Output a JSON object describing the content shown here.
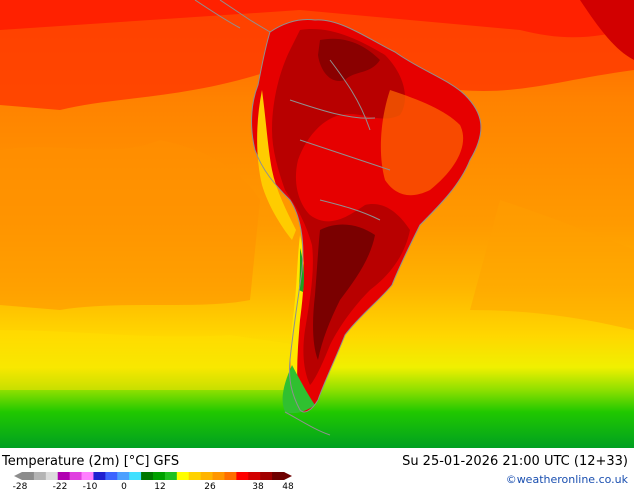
{
  "header": {
    "title": "Temperature (2m) [°C] GFS",
    "datetime": "Su 25-01-2026 21:00 UTC (12+33)",
    "credit": "©weatheronline.co.uk"
  },
  "legend": {
    "ticks": [
      "-28",
      "-22",
      "-10",
      "0",
      "12",
      "26",
      "38",
      "48"
    ],
    "colors": [
      "#8c8c8c",
      "#b4b4b4",
      "#dcdcdc",
      "#b000b0",
      "#e040e0",
      "#ff80ff",
      "#2020d0",
      "#3c64ff",
      "#4ca0ff",
      "#40e0ff",
      "#007800",
      "#00a000",
      "#20c020",
      "#ffff00",
      "#ffd200",
      "#ffb400",
      "#ff9600",
      "#ff6e00",
      "#ff0000",
      "#d20000",
      "#a00000",
      "#6e0000"
    ]
  },
  "colors": {
    "ocean_warm": "#ff8800",
    "ocean_mid": "#ffaa00",
    "ocean_cool": "#ffdd00",
    "polar": "#00c800",
    "land_hot": "#ff0000",
    "land_very_hot": "#b40000",
    "coast_outline": "#909090"
  }
}
